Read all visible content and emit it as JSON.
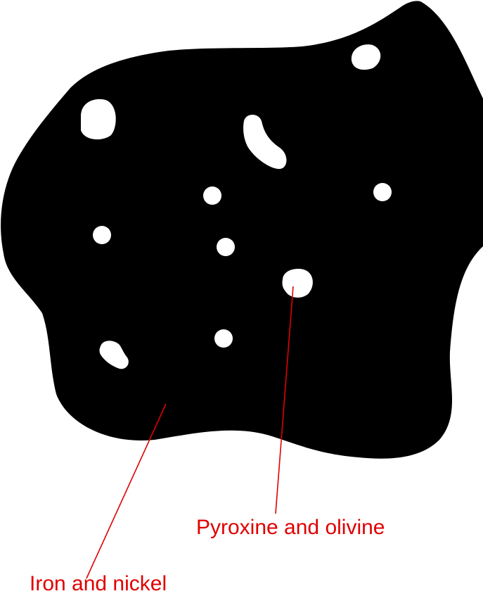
{
  "labels": {
    "inclusions": "Pyroxine and olivine",
    "matrix": "Iron and nickel"
  },
  "colors": {
    "body": "#000000",
    "inclusion": "#ffffff",
    "annotation": "#e00000"
  }
}
